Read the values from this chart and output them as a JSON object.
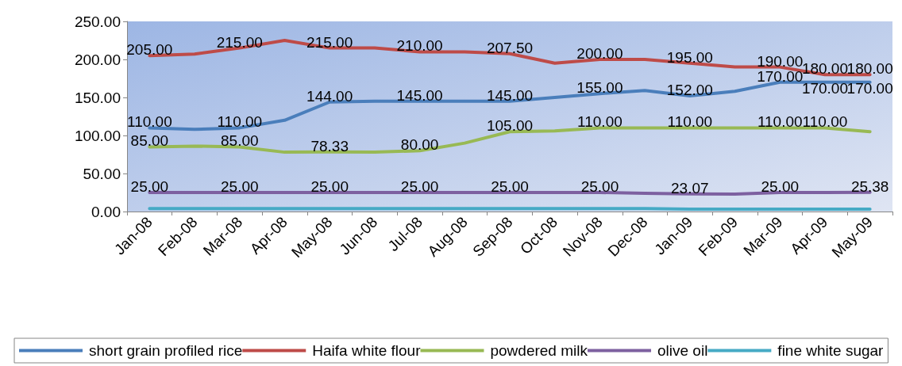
{
  "chart_data": {
    "type": "line",
    "categories": [
      "Jan-08",
      "Feb-08",
      "Mar-08",
      "Apr-08",
      "May-08",
      "Jun-08",
      "Jul-08",
      "Aug-08",
      "Sep-08",
      "Oct-08",
      "Nov-08",
      "Dec-08",
      "Jan-09",
      "Feb-09",
      "Mar-09",
      "Apr-09",
      "May-09"
    ],
    "series": [
      {
        "name": "short grain profiled rice",
        "color": "#4a7ebb",
        "values": [
          110,
          108,
          110,
          120,
          144,
          145,
          145,
          145,
          145,
          150,
          155,
          159,
          152,
          158,
          170,
          170,
          170
        ],
        "value_labels": [
          "110.00",
          null,
          "110.00",
          null,
          "144.00",
          null,
          "145.00",
          null,
          "145.00",
          null,
          "155.00",
          null,
          "152.00",
          null,
          "170.00",
          "170.00",
          "170.00"
        ]
      },
      {
        "name": "Haifa white flour",
        "color": "#be4b48",
        "values": [
          205,
          207,
          215,
          225,
          215,
          215,
          210,
          210,
          207.5,
          195,
          200,
          200,
          195,
          190,
          190,
          180,
          180
        ],
        "value_labels": [
          "205.00",
          null,
          "215.00",
          null,
          "215.00",
          null,
          "210.00",
          null,
          "207.50",
          null,
          "200.00",
          null,
          "195.00",
          null,
          "190.00",
          "180.00",
          "180.00"
        ]
      },
      {
        "name": "powdered milk",
        "color": "#98b954",
        "values": [
          85,
          86,
          85,
          78,
          78.33,
          78,
          80,
          90,
          105,
          106,
          110,
          110,
          110,
          110,
          110,
          110,
          105
        ],
        "value_labels": [
          "85.00",
          null,
          "85.00",
          null,
          "78.33",
          null,
          "80.00",
          null,
          "105.00",
          null,
          "110.00",
          null,
          "110.00",
          null,
          "110.00",
          "110.00",
          null
        ]
      },
      {
        "name": "olive oil",
        "color": "#7d60a0",
        "values": [
          25,
          25,
          25,
          25,
          25,
          25,
          25,
          25,
          25,
          25,
          25,
          24,
          23.07,
          23,
          25,
          25,
          25.38
        ],
        "value_labels": [
          "25.00",
          null,
          "25.00",
          null,
          "25.00",
          null,
          "25.00",
          null,
          "25.00",
          null,
          "25.00",
          null,
          "23.07",
          null,
          "25.00",
          null,
          "25.38"
        ]
      },
      {
        "name": "fine white sugar",
        "color": "#46aac5",
        "values": [
          4,
          4,
          4,
          4,
          4,
          4,
          4,
          4,
          4,
          4,
          4,
          4,
          3,
          3,
          3,
          3,
          3
        ]
      }
    ],
    "ylim": [
      0,
      250
    ],
    "yticks": [
      {
        "value": 0,
        "label": "0.00"
      },
      {
        "value": 50,
        "label": "50.00"
      },
      {
        "value": 100,
        "label": "100.00"
      },
      {
        "value": 150,
        "label": "150.00"
      },
      {
        "value": 200,
        "label": "200.00"
      },
      {
        "value": 250,
        "label": "250.00"
      }
    ],
    "grid": false,
    "legend": "bottom",
    "marker": "none",
    "line_style": "solid"
  }
}
